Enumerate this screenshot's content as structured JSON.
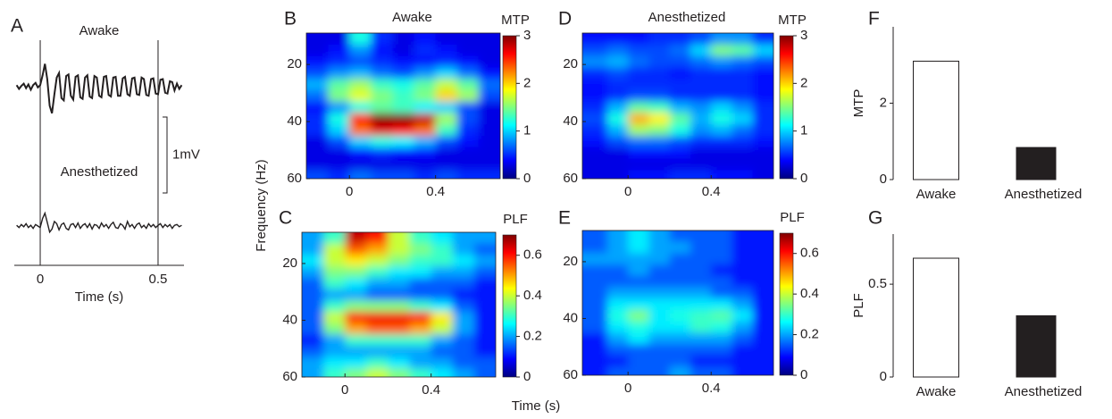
{
  "figure": {
    "xlabel": "Time (s)",
    "ylabel": "Frequency (Hz)"
  },
  "chart_data": [
    {
      "type": "line",
      "label": "A",
      "color": "#231f20",
      "xlabel": "Time (s)",
      "xlim": [
        -0.11,
        0.61
      ],
      "xticks": [
        0,
        0.5
      ],
      "grid": true,
      "scale_bar": {
        "value": 1,
        "label": "1mV"
      },
      "x": [
        -0.1,
        -0.09,
        -0.08,
        -0.07,
        -0.06,
        -0.05,
        -0.04,
        -0.03,
        -0.02,
        -0.01,
        0,
        0.01,
        0.02,
        0.03,
        0.04,
        0.05,
        0.06,
        0.07,
        0.08,
        0.09,
        0.1,
        0.11,
        0.12,
        0.13,
        0.14,
        0.15,
        0.16,
        0.17,
        0.18,
        0.19,
        0.2,
        0.21,
        0.22,
        0.23,
        0.24,
        0.25,
        0.26,
        0.27,
        0.28,
        0.29,
        0.3,
        0.31,
        0.32,
        0.33,
        0.34,
        0.35,
        0.36,
        0.37,
        0.38,
        0.39,
        0.4,
        0.41,
        0.42,
        0.43,
        0.44,
        0.45,
        0.46,
        0.47,
        0.48,
        0.49,
        0.5,
        0.51,
        0.52,
        0.53,
        0.54,
        0.55,
        0.56,
        0.57,
        0.58,
        0.59,
        0.6
      ],
      "series": [
        {
          "name": "Awake",
          "values": [
            0.02,
            -0.03,
            0.01,
            0.04,
            -0.02,
            0.03,
            -0.04,
            0.02,
            0.05,
            -0.01,
            0.02,
            0.15,
            0.3,
            0.1,
            -0.25,
            -0.35,
            -0.1,
            0.12,
            0.18,
            -0.15,
            -0.18,
            0.14,
            0.16,
            -0.12,
            -0.17,
            0.13,
            0.15,
            -0.14,
            -0.16,
            0.12,
            0.15,
            -0.13,
            -0.15,
            0.14,
            0.12,
            -0.12,
            -0.14,
            0.13,
            0.14,
            -0.11,
            -0.13,
            0.12,
            0.13,
            -0.12,
            -0.12,
            0.11,
            0.13,
            -0.1,
            -0.12,
            0.11,
            0.12,
            -0.1,
            -0.11,
            0.12,
            0.1,
            -0.11,
            -0.12,
            0.1,
            0.11,
            -0.09,
            -0.1,
            0.09,
            0.1,
            -0.08,
            -0.09,
            0.07,
            0.06,
            -0.05,
            0.04,
            -0.03,
            0.02
          ]
        },
        {
          "name": "Anesthetized",
          "values": [
            0.01,
            -0.02,
            0.02,
            -0.01,
            0.03,
            -0.02,
            0.01,
            -0.03,
            0.02,
            0,
            -0.02,
            0.1,
            0.17,
            0.05,
            -0.08,
            -0.04,
            0.06,
            0.03,
            -0.05,
            0.02,
            0.04,
            -0.03,
            -0.05,
            0.02,
            0.03,
            -0.02,
            0.04,
            -0.03,
            0.01,
            0.03,
            -0.02,
            0.03,
            -0.04,
            0.02,
            0.01,
            -0.03,
            0.04,
            -0.01,
            0.02,
            -0.03,
            0.02,
            0.05,
            -0.02,
            -0.03,
            0.03,
            0.01,
            -0.04,
            0.06,
            -0.01,
            0.02,
            -0.03,
            0.02,
            0.04,
            -0.02,
            0.01,
            -0.03,
            0.03,
            -0.01,
            0.02,
            -0.02,
            0.01,
            0.03,
            -0.02,
            0.02,
            -0.01,
            0.02,
            -0.03,
            0.01,
            0.02,
            -0.01,
            0.01
          ]
        }
      ]
    },
    {
      "type": "heatmap",
      "label": "B",
      "title": "Awake",
      "colorbar_label": "MTP",
      "xlim": [
        -0.2,
        0.7
      ],
      "ylim": [
        60,
        9
      ],
      "xticks": [
        0,
        0.4
      ],
      "yticks": [
        20,
        40,
        60
      ],
      "zlim": [
        0,
        3
      ],
      "zticks": [
        0,
        1,
        2,
        3
      ],
      "x": [
        -0.15,
        -0.05,
        0.05,
        0.15,
        0.25,
        0.35,
        0.45,
        0.55,
        0.65
      ],
      "y": [
        11,
        15,
        19,
        23,
        27,
        31,
        35,
        39,
        43,
        47,
        51,
        55,
        59
      ],
      "z": [
        [
          0.3,
          0.3,
          1.2,
          0.5,
          0.3,
          0.4,
          0.3,
          0.3,
          0.3
        ],
        [
          0.3,
          0.4,
          0.8,
          0.4,
          0.3,
          0.5,
          0.4,
          0.3,
          0.3
        ],
        [
          0.4,
          0.5,
          0.6,
          0.5,
          0.4,
          0.4,
          0.5,
          0.4,
          0.3
        ],
        [
          0.6,
          0.8,
          0.9,
          0.7,
          0.6,
          0.8,
          1.0,
          0.7,
          0.4
        ],
        [
          0.9,
          1.4,
          1.6,
          1.3,
          1.2,
          1.4,
          1.7,
          1.4,
          0.7
        ],
        [
          0.7,
          1.5,
          1.8,
          1.5,
          1.3,
          1.5,
          2.0,
          1.6,
          0.6
        ],
        [
          0.4,
          0.8,
          1.2,
          1.4,
          1.3,
          1.1,
          1.0,
          0.6,
          0.3
        ],
        [
          0.5,
          1.2,
          2.6,
          3.0,
          3.0,
          2.8,
          1.6,
          0.6,
          0.3
        ],
        [
          0.5,
          1.0,
          2.3,
          2.7,
          2.6,
          2.3,
          1.3,
          0.5,
          0.3
        ],
        [
          0.3,
          0.6,
          1.0,
          1.2,
          1.1,
          0.9,
          0.6,
          0.4,
          0.3
        ],
        [
          0.3,
          0.3,
          0.4,
          0.5,
          0.4,
          0.4,
          0.3,
          0.3,
          0.3
        ],
        [
          0.3,
          0.3,
          0.3,
          0.3,
          0.3,
          0.3,
          0.3,
          0.3,
          0.3
        ],
        [
          0.6,
          0.5,
          0.7,
          0.6,
          0.6,
          0.5,
          0.6,
          0.5,
          0.5
        ]
      ]
    },
    {
      "type": "heatmap",
      "label": "C",
      "colorbar_label": "PLF",
      "xlim": [
        -0.2,
        0.7
      ],
      "ylim": [
        60,
        9
      ],
      "xticks": [
        0,
        0.4
      ],
      "yticks": [
        20,
        40,
        60
      ],
      "zlim": [
        0,
        0.7
      ],
      "zticks": [
        0,
        0.2,
        0.4,
        0.6
      ],
      "x": [
        -0.15,
        -0.05,
        0.05,
        0.15,
        0.25,
        0.35,
        0.45,
        0.55,
        0.65
      ],
      "y": [
        11,
        15,
        19,
        23,
        27,
        31,
        35,
        39,
        43,
        47,
        51,
        55,
        59
      ],
      "z": [
        [
          0.2,
          0.3,
          0.65,
          0.6,
          0.4,
          0.3,
          0.25,
          0.2,
          0.2
        ],
        [
          0.2,
          0.4,
          0.55,
          0.5,
          0.4,
          0.35,
          0.3,
          0.2,
          0.15
        ],
        [
          0.25,
          0.4,
          0.45,
          0.4,
          0.35,
          0.3,
          0.3,
          0.25,
          0.2
        ],
        [
          0.2,
          0.35,
          0.35,
          0.3,
          0.25,
          0.25,
          0.2,
          0.2,
          0.15
        ],
        [
          0.15,
          0.3,
          0.25,
          0.2,
          0.2,
          0.15,
          0.15,
          0.15,
          0.1
        ],
        [
          0.15,
          0.2,
          0.2,
          0.15,
          0.15,
          0.15,
          0.15,
          0.1,
          0.1
        ],
        [
          0.15,
          0.3,
          0.35,
          0.35,
          0.35,
          0.3,
          0.25,
          0.15,
          0.1
        ],
        [
          0.15,
          0.4,
          0.6,
          0.62,
          0.62,
          0.6,
          0.45,
          0.2,
          0.1
        ],
        [
          0.15,
          0.35,
          0.5,
          0.55,
          0.55,
          0.5,
          0.4,
          0.2,
          0.1
        ],
        [
          0.1,
          0.2,
          0.3,
          0.3,
          0.3,
          0.3,
          0.2,
          0.15,
          0.1
        ],
        [
          0.15,
          0.2,
          0.2,
          0.2,
          0.2,
          0.2,
          0.15,
          0.15,
          0.1
        ],
        [
          0.2,
          0.25,
          0.25,
          0.3,
          0.25,
          0.2,
          0.2,
          0.15,
          0.15
        ],
        [
          0.2,
          0.3,
          0.35,
          0.4,
          0.35,
          0.3,
          0.25,
          0.2,
          0.15
        ]
      ]
    },
    {
      "type": "heatmap",
      "label": "D",
      "title": "Anesthetized",
      "colorbar_label": "MTP",
      "xlim": [
        -0.22,
        0.7
      ],
      "ylim": [
        60,
        9
      ],
      "xticks": [
        0,
        0.4
      ],
      "yticks": [
        20,
        40,
        60
      ],
      "zlim": [
        0,
        3
      ],
      "zticks": [
        0,
        1,
        2,
        3
      ],
      "x": [
        -0.15,
        -0.05,
        0.05,
        0.15,
        0.25,
        0.35,
        0.45,
        0.55,
        0.65
      ],
      "y": [
        11,
        15,
        19,
        23,
        27,
        31,
        35,
        39,
        43,
        47,
        51,
        55,
        59
      ],
      "z": [
        [
          0.4,
          0.4,
          0.4,
          0.5,
          0.5,
          0.6,
          0.8,
          0.8,
          0.5
        ],
        [
          0.6,
          0.7,
          0.6,
          0.6,
          0.7,
          1.0,
          1.5,
          1.4,
          1.0
        ],
        [
          0.8,
          0.9,
          0.7,
          0.6,
          0.6,
          0.7,
          0.8,
          0.7,
          0.6
        ],
        [
          0.5,
          0.6,
          0.5,
          0.5,
          0.4,
          0.5,
          0.5,
          0.5,
          0.4
        ],
        [
          0.4,
          0.5,
          0.5,
          0.5,
          0.5,
          0.5,
          0.5,
          0.5,
          0.4
        ],
        [
          0.4,
          0.5,
          0.6,
          0.6,
          0.5,
          0.5,
          0.5,
          0.5,
          0.4
        ],
        [
          0.5,
          0.9,
          1.4,
          1.3,
          0.9,
          0.8,
          1.0,
          0.8,
          0.5
        ],
        [
          0.6,
          1.2,
          2.1,
          1.9,
          1.4,
          0.9,
          1.2,
          1.0,
          0.5
        ],
        [
          0.5,
          0.9,
          1.6,
          1.5,
          1.2,
          0.8,
          0.9,
          0.7,
          0.5
        ],
        [
          0.4,
          0.6,
          0.7,
          0.7,
          0.6,
          0.5,
          0.5,
          0.5,
          0.4
        ],
        [
          0.3,
          0.3,
          0.4,
          0.4,
          0.4,
          0.3,
          0.3,
          0.3,
          0.3
        ],
        [
          0.3,
          0.3,
          0.3,
          0.3,
          0.3,
          0.3,
          0.3,
          0.3,
          0.3
        ],
        [
          0.3,
          0.3,
          0.4,
          0.4,
          0.5,
          0.5,
          0.4,
          0.4,
          0.3
        ]
      ]
    },
    {
      "type": "heatmap",
      "label": "E",
      "colorbar_label": "PLF",
      "xlim": [
        -0.22,
        0.7
      ],
      "ylim": [
        60,
        9
      ],
      "xticks": [
        0,
        0.4
      ],
      "yticks": [
        20,
        40,
        60
      ],
      "zlim": [
        0,
        0.7
      ],
      "zticks": [
        0,
        0.2,
        0.4,
        0.6
      ],
      "x": [
        -0.15,
        -0.05,
        0.05,
        0.15,
        0.25,
        0.35,
        0.45,
        0.55,
        0.65
      ],
      "y": [
        11,
        15,
        19,
        23,
        27,
        31,
        35,
        39,
        43,
        47,
        51,
        55,
        59
      ],
      "z": [
        [
          0.15,
          0.2,
          0.25,
          0.2,
          0.15,
          0.15,
          0.15,
          0.1,
          0.1
        ],
        [
          0.15,
          0.2,
          0.25,
          0.2,
          0.2,
          0.15,
          0.15,
          0.1,
          0.1
        ],
        [
          0.2,
          0.2,
          0.2,
          0.2,
          0.15,
          0.15,
          0.15,
          0.1,
          0.1
        ],
        [
          0.15,
          0.15,
          0.2,
          0.15,
          0.15,
          0.15,
          0.1,
          0.1,
          0.1
        ],
        [
          0.15,
          0.15,
          0.15,
          0.15,
          0.15,
          0.15,
          0.15,
          0.1,
          0.1
        ],
        [
          0.15,
          0.2,
          0.2,
          0.2,
          0.2,
          0.2,
          0.15,
          0.15,
          0.1
        ],
        [
          0.15,
          0.25,
          0.25,
          0.25,
          0.25,
          0.25,
          0.25,
          0.2,
          0.1
        ],
        [
          0.15,
          0.28,
          0.35,
          0.25,
          0.28,
          0.3,
          0.32,
          0.25,
          0.1
        ],
        [
          0.15,
          0.25,
          0.28,
          0.25,
          0.25,
          0.3,
          0.28,
          0.2,
          0.1
        ],
        [
          0.1,
          0.2,
          0.25,
          0.2,
          0.2,
          0.2,
          0.2,
          0.15,
          0.1
        ],
        [
          0.1,
          0.15,
          0.15,
          0.15,
          0.15,
          0.15,
          0.15,
          0.1,
          0.1
        ],
        [
          0.1,
          0.1,
          0.15,
          0.15,
          0.15,
          0.1,
          0.1,
          0.1,
          0.1
        ],
        [
          0.1,
          0.15,
          0.15,
          0.15,
          0.2,
          0.15,
          0.15,
          0.1,
          0.1
        ]
      ]
    },
    {
      "type": "bar",
      "label": "F",
      "ylabel": "MTP",
      "categories": [
        "Awake",
        "Anesthetized"
      ],
      "values": [
        3.1,
        0.84
      ],
      "colors": [
        "#ffffff",
        "#231f20"
      ],
      "ylim": [
        0,
        4
      ],
      "yticks": [
        0,
        2
      ]
    },
    {
      "type": "bar",
      "label": "G",
      "ylabel": "PLF",
      "categories": [
        "Awake",
        "Anesthetized"
      ],
      "values": [
        0.64,
        0.33
      ],
      "colors": [
        "#ffffff",
        "#231f20"
      ],
      "ylim": [
        0,
        0.77
      ],
      "yticks": [
        0,
        0.5
      ]
    }
  ]
}
